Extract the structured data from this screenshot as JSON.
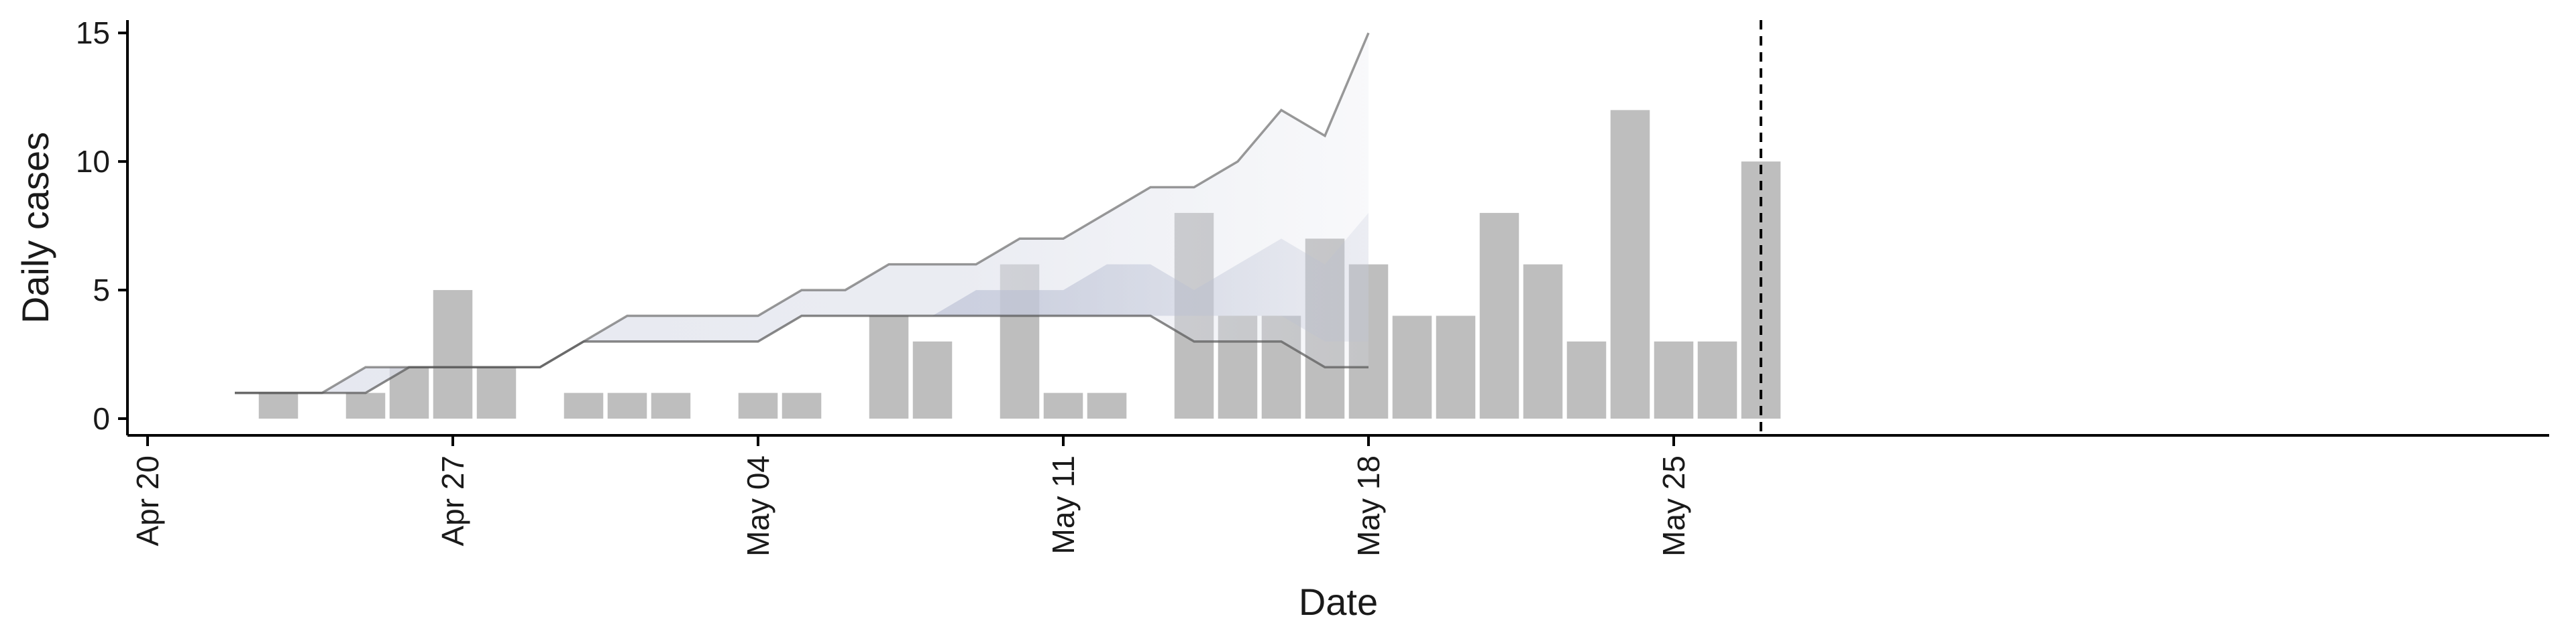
{
  "chart_data": {
    "type": "bar",
    "title": "",
    "xlabel": "Date",
    "ylabel": "Daily cases",
    "x_ticks": [
      "2020-04-20",
      "2020-04-27",
      "2020-05-04",
      "2020-05-11",
      "2020-05-18",
      "2020-05-25"
    ],
    "x_tick_labels": [
      "Apr 20",
      "Apr 27",
      "May 04",
      "May 11",
      "May 18",
      "May 25"
    ],
    "y_ticks": [
      0,
      5,
      10,
      15
    ],
    "xlim": [
      "2020-04-20",
      "2020-05-28"
    ],
    "ylim": [
      0,
      15.5
    ],
    "grid": false,
    "bars": {
      "dates": [
        "2020-04-23",
        "2020-04-25",
        "2020-04-26",
        "2020-04-27",
        "2020-04-28",
        "2020-04-30",
        "2020-05-01",
        "2020-05-02",
        "2020-05-04",
        "2020-05-05",
        "2020-05-07",
        "2020-05-08",
        "2020-05-10",
        "2020-05-11",
        "2020-05-12",
        "2020-05-14",
        "2020-05-15",
        "2020-05-16",
        "2020-05-17",
        "2020-05-18",
        "2020-05-19",
        "2020-05-20",
        "2020-05-21",
        "2020-05-22",
        "2020-05-23",
        "2020-05-24",
        "2020-05-25",
        "2020-05-26",
        "2020-05-27"
      ],
      "values": [
        1,
        1,
        2,
        5,
        2,
        1,
        1,
        1,
        1,
        1,
        4,
        3,
        6,
        1,
        1,
        8,
        4,
        4,
        7,
        6,
        4,
        4,
        8,
        6,
        3,
        12,
        3,
        3,
        10
      ],
      "color": "#bebebe"
    },
    "estimate_bands": {
      "dates": [
        "2020-04-22",
        "2020-04-23",
        "2020-04-24",
        "2020-04-25",
        "2020-04-26",
        "2020-04-27",
        "2020-04-28",
        "2020-04-29",
        "2020-04-30",
        "2020-05-01",
        "2020-05-02",
        "2020-05-03",
        "2020-05-04",
        "2020-05-05",
        "2020-05-06",
        "2020-05-07",
        "2020-05-08",
        "2020-05-09",
        "2020-05-10",
        "2020-05-11",
        "2020-05-12",
        "2020-05-13",
        "2020-05-14",
        "2020-05-15",
        "2020-05-16",
        "2020-05-17",
        "2020-05-18"
      ],
      "outer_upper": [
        1,
        1,
        1,
        2,
        2,
        2,
        2,
        2,
        3,
        4,
        4,
        4,
        4,
        5,
        5,
        6,
        6,
        6,
        7,
        7,
        8,
        9,
        9,
        10,
        12,
        11,
        15
      ],
      "outer_lower": [
        1,
        1,
        1,
        1,
        2,
        2,
        2,
        2,
        3,
        3,
        3,
        3,
        3,
        4,
        4,
        4,
        4,
        4,
        4,
        4,
        4,
        4,
        3,
        3,
        3,
        2,
        2
      ],
      "inner_upper": [
        1,
        1,
        1,
        1,
        2,
        2,
        2,
        2,
        3,
        3,
        3,
        3,
        3,
        4,
        4,
        4,
        4,
        5,
        5,
        5,
        6,
        6,
        5,
        6,
        7,
        6,
        8
      ],
      "inner_lower": [
        1,
        1,
        1,
        1,
        2,
        2,
        2,
        2,
        3,
        3,
        3,
        3,
        3,
        4,
        4,
        4,
        4,
        4,
        4,
        4,
        4,
        4,
        4,
        4,
        4,
        3,
        3
      ],
      "outer_color": "#dde0ea",
      "inner_color": "#b9bfd3",
      "line_color": "#555555"
    },
    "vertical_reference_line": {
      "date": "2020-05-27",
      "style": "dashed"
    }
  }
}
